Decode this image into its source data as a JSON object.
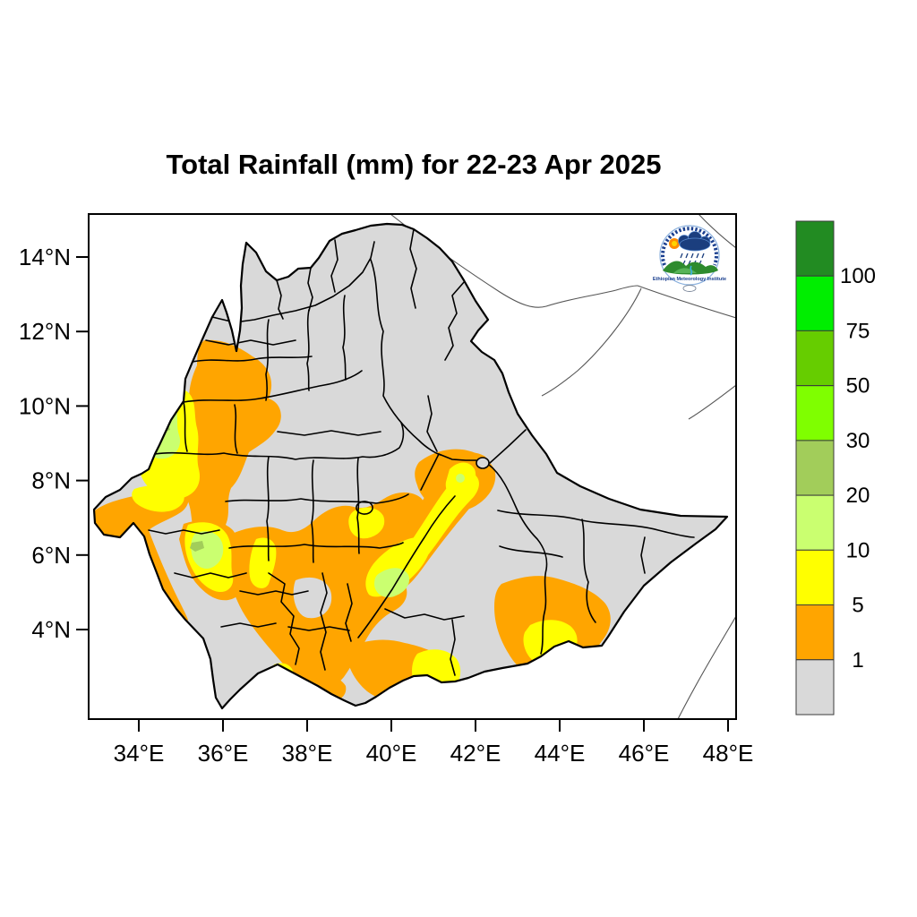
{
  "title": "Total Rainfall (mm) for 22-23 Apr 2025",
  "axes": {
    "x_ticks": [
      "34°E",
      "36°E",
      "38°E",
      "40°E",
      "42°E",
      "44°E",
      "46°E",
      "48°E"
    ],
    "y_ticks": [
      "14°N",
      "12°N",
      "10°N",
      "8°N",
      "6°N",
      "4°N"
    ]
  },
  "legend": {
    "labels_top_to_bottom": [
      "100",
      "75",
      "50",
      "30",
      "20",
      "10",
      "5",
      "1"
    ]
  },
  "logo": {
    "institute": "Ethiopian Meteorology Institute"
  },
  "chart_data": {
    "type": "heatmap",
    "title": "Total Rainfall (mm) for 22-23 Apr 2025",
    "variable": "Total Rainfall",
    "units": "mm",
    "period": "22-23 Apr 2025",
    "region": "Ethiopia (zone administrative boundaries shown; neighbouring borders drawn as thin lines)",
    "x_axis": {
      "ticks_deg_east": [
        34,
        36,
        38,
        40,
        42,
        44,
        46,
        48
      ],
      "range_deg_east": [
        32.7,
        48.2
      ],
      "label_format": "°E"
    },
    "y_axis": {
      "ticks_deg_north": [
        14,
        12,
        10,
        8,
        6,
        4
      ],
      "range_deg_north": [
        1.6,
        15.2
      ],
      "label_format": "°N"
    },
    "legend_breaks_mm": [
      1,
      5,
      10,
      20,
      30,
      50,
      75,
      100
    ],
    "legend_colors_low_to_high": [
      "#D9D9D9",
      "#FFA500",
      "#FFFF00",
      "#CAFF70",
      "#A2CD5A",
      "#7FFF00",
      "#66CD00",
      "#00EE00",
      "#228B22"
    ],
    "categories_visible_on_map_mm": [
      "<1",
      "1-5",
      "5-10",
      "10-20",
      "20-30"
    ],
    "map_summary": "Most of Ethiopia below 1 mm (gray). 1-5 mm (orange) bands along the north-west/west border (~36E, 9-12N), Gambela salient (~33-35E, 8N), central-southern highlands (~36-40E, 5-8N), a diagonal band from ~41.5E,9N down to ~40.5E,6.5N (Harar area), the south-east (~41-42E, 4.5-6.5N) and near the southern border. 5-10 mm (yellow) cores inside those bands. 10-20 mm (pale green) pockets at ~34.8E,10.2N, ~35.4E,7.2N, ~40.8E,6.7N and ~42E,8.6N. Traces of 20-30 mm near the western pockets.",
    "grid": false,
    "legend_position": "right colorbar"
  }
}
